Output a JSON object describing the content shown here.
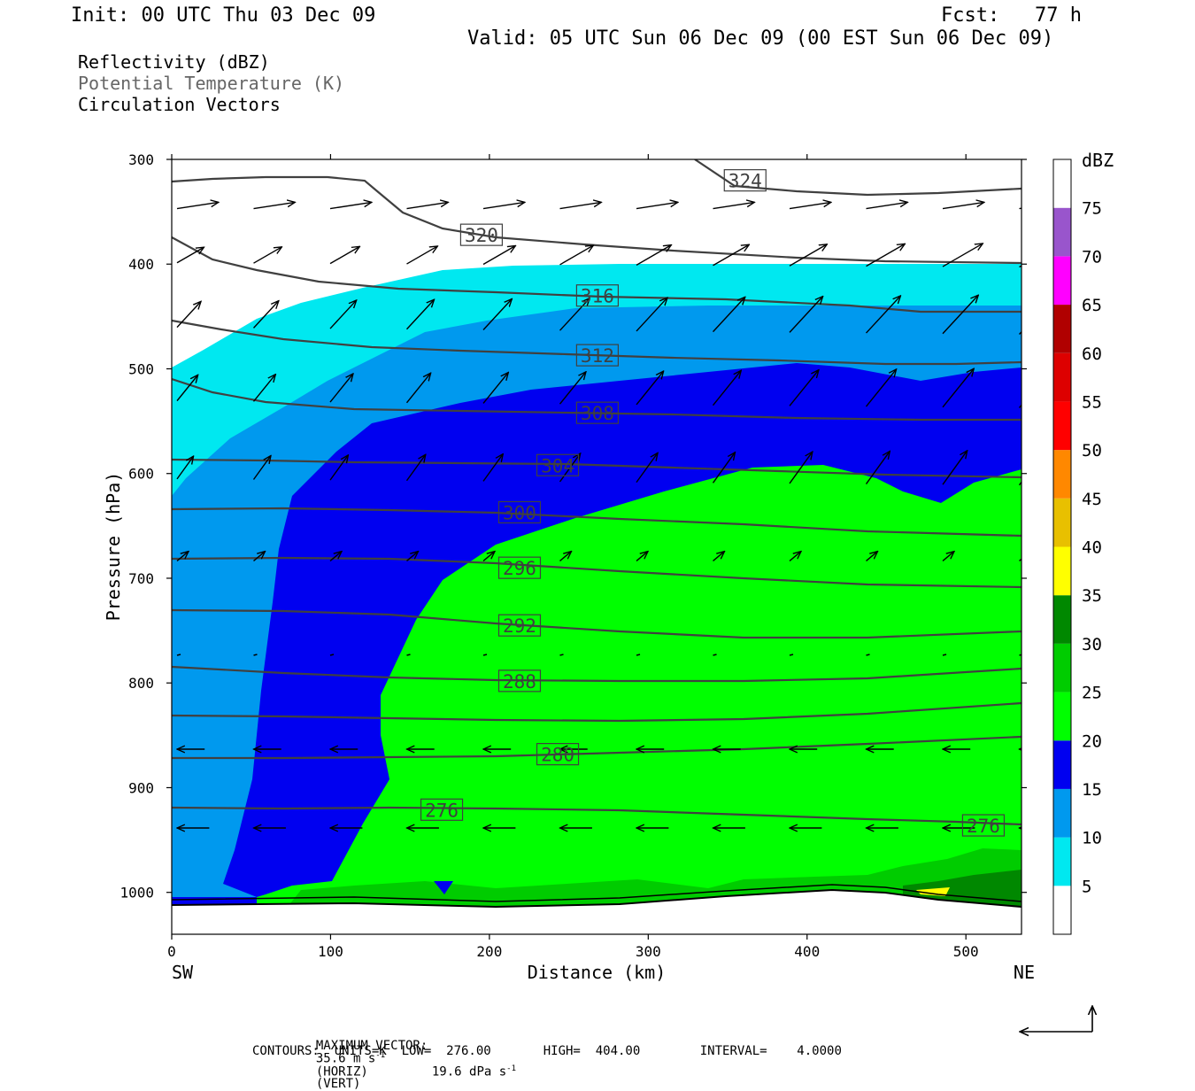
{
  "header": {
    "init": "Init: 00 UTC Thu 03 Dec 09",
    "fcst": "Fcst:   77 h",
    "valid": "Valid: 05 UTC Sun 06 Dec 09 (00 EST Sun 06 Dec 09)"
  },
  "fields": {
    "reflectivity": "Reflectivity (dBZ)",
    "theta": "Potential Temperature (K)",
    "vectors": "Circulation Vectors"
  },
  "footer": {
    "max_vector_label": "MAXIMUM VECTOR:",
    "max_vector_horiz": "35.6 m s",
    "horiz_exp": "-1",
    "horiz_tag": "(HORIZ)",
    "max_vector_vert": "19.6 dPa s",
    "vert_exp": "-1",
    "vert_tag": "(VERT)",
    "contours_line": "CONTOURS:  UNITS=K  LOW=  276.00       HIGH=  404.00        INTERVAL=    4.0000"
  },
  "chart_data": {
    "type": "contour",
    "ylabel": "Pressure (hPa)",
    "xlabel": "Distance (km)",
    "x_end_labels": {
      "left": "SW",
      "right": "NE"
    },
    "xlim": [
      0,
      535
    ],
    "ylim": [
      1040,
      300
    ],
    "x_ticks": [
      0,
      100,
      200,
      300,
      400,
      500
    ],
    "y_ticks": [
      300,
      400,
      500,
      600,
      700,
      800,
      900,
      1000
    ],
    "colorbar": {
      "unit": "dBZ",
      "levels": [
        5,
        10,
        15,
        20,
        25,
        30,
        35,
        40,
        45,
        50,
        55,
        60,
        65,
        70,
        75
      ],
      "colors": [
        "#ffffff",
        "#00e8f0",
        "#0099ee",
        "#0000f0",
        "#00ff00",
        "#00cc00",
        "#008800",
        "#ffff00",
        "#e8c000",
        "#ff8800",
        "#ff0000",
        "#dd0000",
        "#b00000",
        "#ff00ff",
        "#9955cc",
        "#ffffff"
      ]
    },
    "theta_labels": [
      {
        "value": "324",
        "x": 361,
        "p": 320
      },
      {
        "value": "320",
        "x": 195,
        "p": 372
      },
      {
        "value": "316",
        "x": 268,
        "p": 430
      },
      {
        "value": "312",
        "x": 268,
        "p": 487
      },
      {
        "value": "308",
        "x": 268,
        "p": 542
      },
      {
        "value": "304",
        "x": 243,
        "p": 592
      },
      {
        "value": "300",
        "x": 219,
        "p": 637
      },
      {
        "value": "296",
        "x": 219,
        "p": 690
      },
      {
        "value": "292",
        "x": 219,
        "p": 745
      },
      {
        "value": "288",
        "x": 219,
        "p": 798
      },
      {
        "value": "280",
        "x": 243,
        "p": 868
      },
      {
        "value": "276",
        "x": 170,
        "p": 921
      },
      {
        "value": "276",
        "x": 511,
        "p": 936
      }
    ]
  }
}
